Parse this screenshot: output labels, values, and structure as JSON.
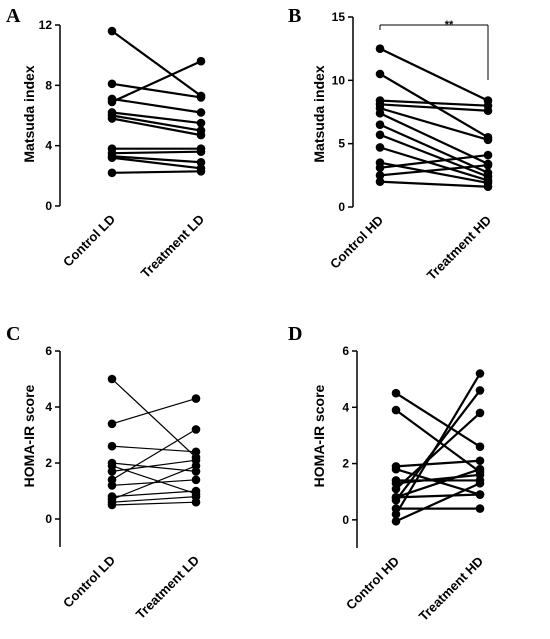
{
  "chart_data": [
    {
      "panel": "A",
      "type": "line",
      "ylabel": "Matsuda index",
      "categories": [
        "Control LD",
        "Treatment LD"
      ],
      "ylim": [
        0,
        12
      ],
      "yticks": [
        0,
        4,
        8,
        12
      ],
      "pairs": [
        [
          11.6,
          7.3
        ],
        [
          8.1,
          7.2
        ],
        [
          7.1,
          6.2
        ],
        [
          6.9,
          9.6
        ],
        [
          6.2,
          5.5
        ],
        [
          6.0,
          5.0
        ],
        [
          5.8,
          4.7
        ],
        [
          3.8,
          3.8
        ],
        [
          3.5,
          3.6
        ],
        [
          3.3,
          2.9
        ],
        [
          3.2,
          2.5
        ],
        [
          2.2,
          2.3
        ]
      ]
    },
    {
      "panel": "B",
      "type": "line",
      "ylabel": "Matsuda index",
      "categories": [
        "Control HD",
        "Treatment HD"
      ],
      "ylim": [
        0,
        15
      ],
      "yticks": [
        0,
        5,
        10,
        15
      ],
      "significance": "**",
      "pairs": [
        [
          12.5,
          8.4
        ],
        [
          10.5,
          5.5
        ],
        [
          8.4,
          8.0
        ],
        [
          8.1,
          7.6
        ],
        [
          7.8,
          5.3
        ],
        [
          7.4,
          3.4
        ],
        [
          6.5,
          2.7
        ],
        [
          5.7,
          2.4
        ],
        [
          4.7,
          2.1
        ],
        [
          3.5,
          1.9
        ],
        [
          3.1,
          4.1
        ],
        [
          2.5,
          3.3
        ],
        [
          2.0,
          1.6
        ]
      ]
    },
    {
      "panel": "C",
      "type": "line",
      "ylabel": "HOMA-IR score",
      "categories": [
        "Control LD",
        "Treatment LD"
      ],
      "ylim": [
        -1,
        6
      ],
      "yticks": [
        0,
        2,
        4,
        6
      ],
      "pairs": [
        [
          5.0,
          2.2
        ],
        [
          3.4,
          4.3
        ],
        [
          2.6,
          2.4
        ],
        [
          2.0,
          1.7
        ],
        [
          1.9,
          0.9
        ],
        [
          1.7,
          2.1
        ],
        [
          1.4,
          3.2
        ],
        [
          1.2,
          1.4
        ],
        [
          0.8,
          1.0
        ],
        [
          0.7,
          1.9
        ],
        [
          0.6,
          0.8
        ],
        [
          0.5,
          0.6
        ]
      ]
    },
    {
      "panel": "D",
      "type": "line",
      "ylabel": "HOMA-IR score",
      "categories": [
        "Control HD",
        "Treatment HD"
      ],
      "ylim": [
        -1,
        6
      ],
      "yticks": [
        0,
        2,
        4,
        6
      ],
      "pairs": [
        [
          4.5,
          2.6
        ],
        [
          3.9,
          1.7
        ],
        [
          1.9,
          2.1
        ],
        [
          1.8,
          0.9
        ],
        [
          1.4,
          1.4
        ],
        [
          1.3,
          1.6
        ],
        [
          1.1,
          3.8
        ],
        [
          0.8,
          1.8
        ],
        [
          0.8,
          0.9
        ],
        [
          0.7,
          4.6
        ],
        [
          0.4,
          0.4
        ],
        [
          0.2,
          5.2
        ],
        [
          -0.05,
          1.3
        ]
      ]
    }
  ]
}
